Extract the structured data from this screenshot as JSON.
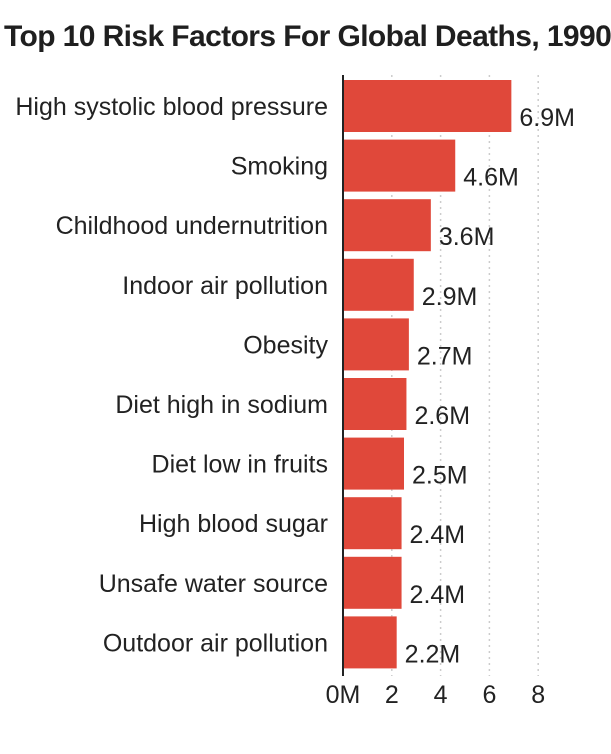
{
  "chart_data": {
    "type": "bar",
    "orientation": "horizontal",
    "title": "Top 10 Risk Factors For Global Deaths, 1990",
    "xlabel": "",
    "ylabel": "",
    "categories": [
      "High systolic blood pressure",
      "Smoking",
      "Childhood undernutrition",
      "Indoor air pollution",
      "Obesity",
      "Diet high in sodium",
      "Diet low in fruits",
      "High blood sugar",
      "Unsafe water source",
      "Outdoor air pollution"
    ],
    "values": [
      6.9,
      4.6,
      3.6,
      2.9,
      2.7,
      2.6,
      2.5,
      2.4,
      2.4,
      2.2
    ],
    "value_labels": [
      "6.9M",
      "4.6M",
      "3.6M",
      "2.9M",
      "2.7M",
      "2.6M",
      "2.5M",
      "2.4M",
      "2.4M",
      "2.2M"
    ],
    "xlim": [
      0,
      8
    ],
    "ticks": [
      0,
      2,
      4,
      6,
      8
    ],
    "tick_labels": [
      "0M",
      "2",
      "4",
      "6",
      "8"
    ],
    "grid": "vertical dotted",
    "legend": "none",
    "bar_color": "#e0483a",
    "grid_color": "#cccccc",
    "axis_color": "#222222"
  }
}
